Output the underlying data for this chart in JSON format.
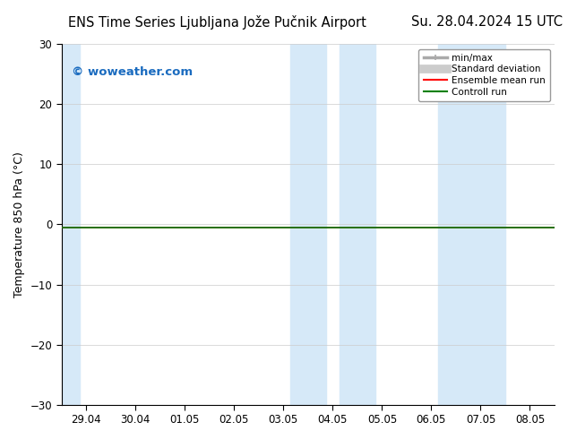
{
  "title_left": "ENS Time Series Ljubljana Jože Pučnik Airport",
  "title_right": "Su. 28.04.2024 15 UTC",
  "ylabel": "Temperature 850 hPa (°C)",
  "watermark": "© woweather.com",
  "watermark_color": "#1a6bbf",
  "ylim": [
    -30,
    30
  ],
  "yticks": [
    -30,
    -20,
    -10,
    0,
    10,
    20,
    30
  ],
  "xlabels": [
    "29.04",
    "30.04",
    "01.05",
    "02.05",
    "03.05",
    "04.05",
    "05.05",
    "06.05",
    "07.05",
    "08.05"
  ],
  "shaded_regions": [
    {
      "xmin": -0.5,
      "xmax": -0.13
    },
    {
      "xmin": 4.13,
      "xmax": 4.87
    },
    {
      "xmin": 5.13,
      "xmax": 5.87
    },
    {
      "xmin": 7.13,
      "xmax": 8.5
    }
  ],
  "shade_color": "#d6e9f8",
  "control_run_y": -0.5,
  "control_run_color": "#008000",
  "ensemble_mean_color": "#ff0000",
  "background_color": "#ffffff",
  "grid_color": "#cccccc",
  "legend_items": [
    {
      "label": "min/max",
      "color": "#aaaaaa",
      "linewidth": 2.5
    },
    {
      "label": "Standard deviation",
      "color": "#cccccc",
      "linewidth": 7
    },
    {
      "label": "Ensemble mean run",
      "color": "#ff0000",
      "linewidth": 1.5
    },
    {
      "label": "Controll run",
      "color": "#008000",
      "linewidth": 1.5
    }
  ],
  "title_fontsize": 10.5,
  "axis_fontsize": 9,
  "tick_fontsize": 8.5,
  "watermark_fontsize": 9.5
}
